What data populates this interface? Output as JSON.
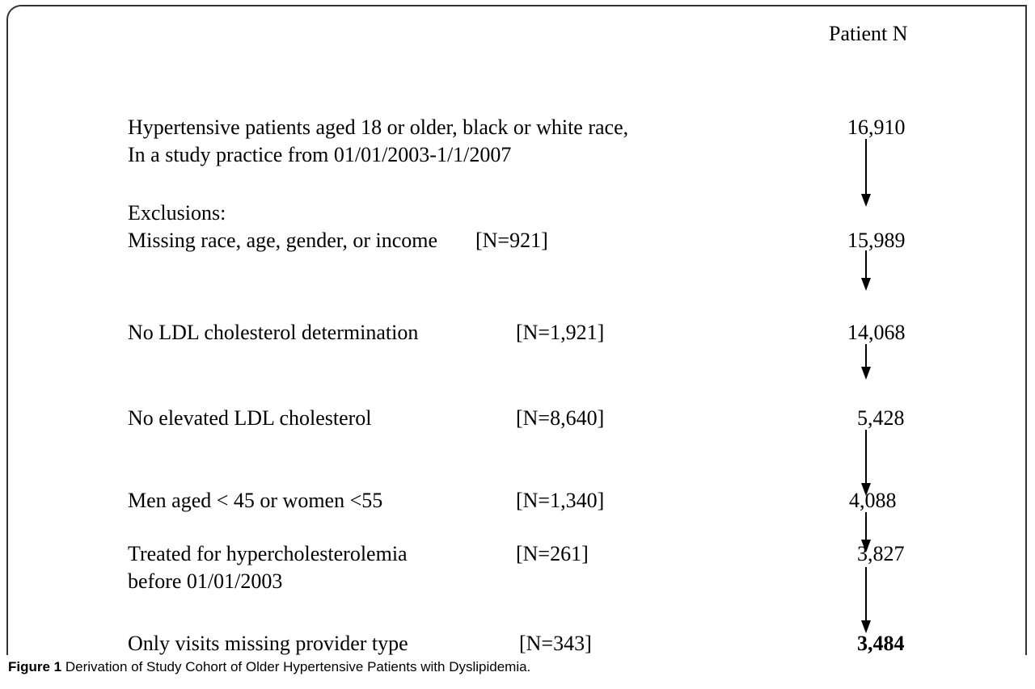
{
  "header": {
    "column_title": "Patient N"
  },
  "steps": [
    {
      "label": [
        "Hypertensive patients aged 18 or older, black or white race,",
        "In a study practice from 01/01/2003-1/1/2007"
      ],
      "n": "16,910"
    },
    {
      "heading": "Exclusions:",
      "label": [
        "Missing race, age, gender, or income"
      ],
      "excluded": "[N=921]",
      "n": "15,989"
    },
    {
      "label": [
        "No LDL cholesterol determination"
      ],
      "excluded": "[N=1,921]",
      "n": "14,068"
    },
    {
      "label": [
        "No elevated LDL cholesterol"
      ],
      "excluded": "[N=8,640]",
      "n": "5,428"
    },
    {
      "label": [
        "Men aged < 45 or women <55"
      ],
      "excluded": "[N=1,340]",
      "n": "4,088"
    },
    {
      "label": [
        "Treated for hypercholesterolemia",
        "before 01/01/2003"
      ],
      "excluded": "[N=261]",
      "n": "3,827"
    },
    {
      "label": [
        "Only visits missing provider type"
      ],
      "excluded": "[N=343]",
      "n": "3,484"
    }
  ],
  "caption": {
    "label": "Figure 1",
    "text": "Derivation of Study Cohort of Older Hypertensive Patients with Dyslipidemia."
  }
}
